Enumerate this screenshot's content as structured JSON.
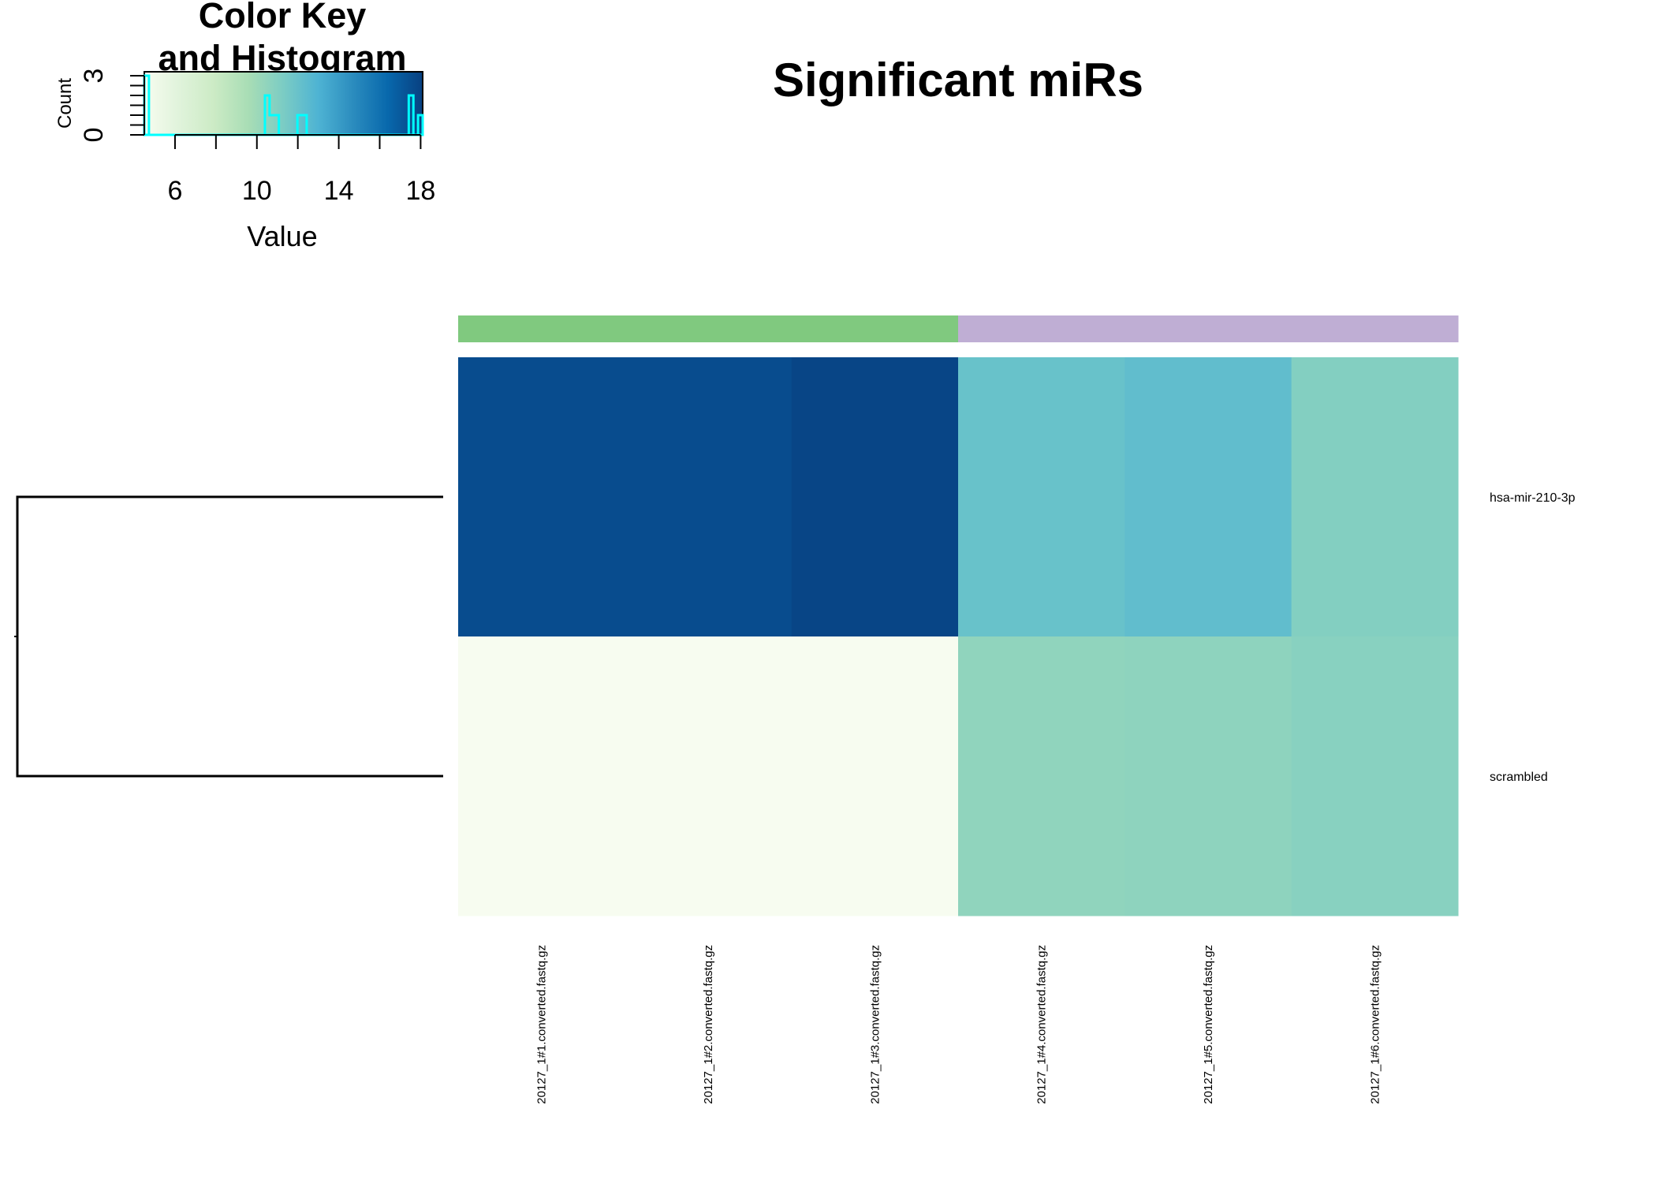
{
  "chart_data": {
    "type": "heatmap",
    "title": "Significant miRs",
    "rows": [
      "hsa-mir-210-3p",
      "scrambled"
    ],
    "columns": [
      "20127_1#1.converted.fastq.gz",
      "20127_1#2.converted.fastq.gz",
      "20127_1#3.converted.fastq.gz",
      "20127_1#4.converted.fastq.gz",
      "20127_1#5.converted.fastq.gz",
      "20127_1#6.converted.fastq.gz"
    ],
    "values": [
      [
        17.6,
        17.6,
        17.9,
        12.0,
        12.3,
        11.0
      ],
      [
        4.5,
        4.5,
        4.5,
        10.5,
        10.6,
        10.8
      ]
    ],
    "column_groups": [
      "#80c97f",
      "#80c97f",
      "#80c97f",
      "#bfaed4",
      "#bfaed4",
      "#bfaed4"
    ],
    "color_key": {
      "title_line1": "Color Key",
      "title_line2": "and Histogram",
      "xlabel": "Value",
      "ylabel": "Count",
      "range": [
        4.5,
        18.1
      ],
      "x_ticks": [
        6,
        10,
        14,
        18
      ],
      "y_ticks": [
        0,
        3
      ],
      "y_range": [
        0,
        3.2
      ],
      "palette": [
        "#f7fcf0",
        "#e0f3db",
        "#ccebc5",
        "#a8ddb5",
        "#7bccc4",
        "#4eb3d3",
        "#2b8cbe",
        "#0868ac",
        "#084081"
      ],
      "histogram_color": "#00ffff"
    },
    "dendrogram": "rows"
  }
}
